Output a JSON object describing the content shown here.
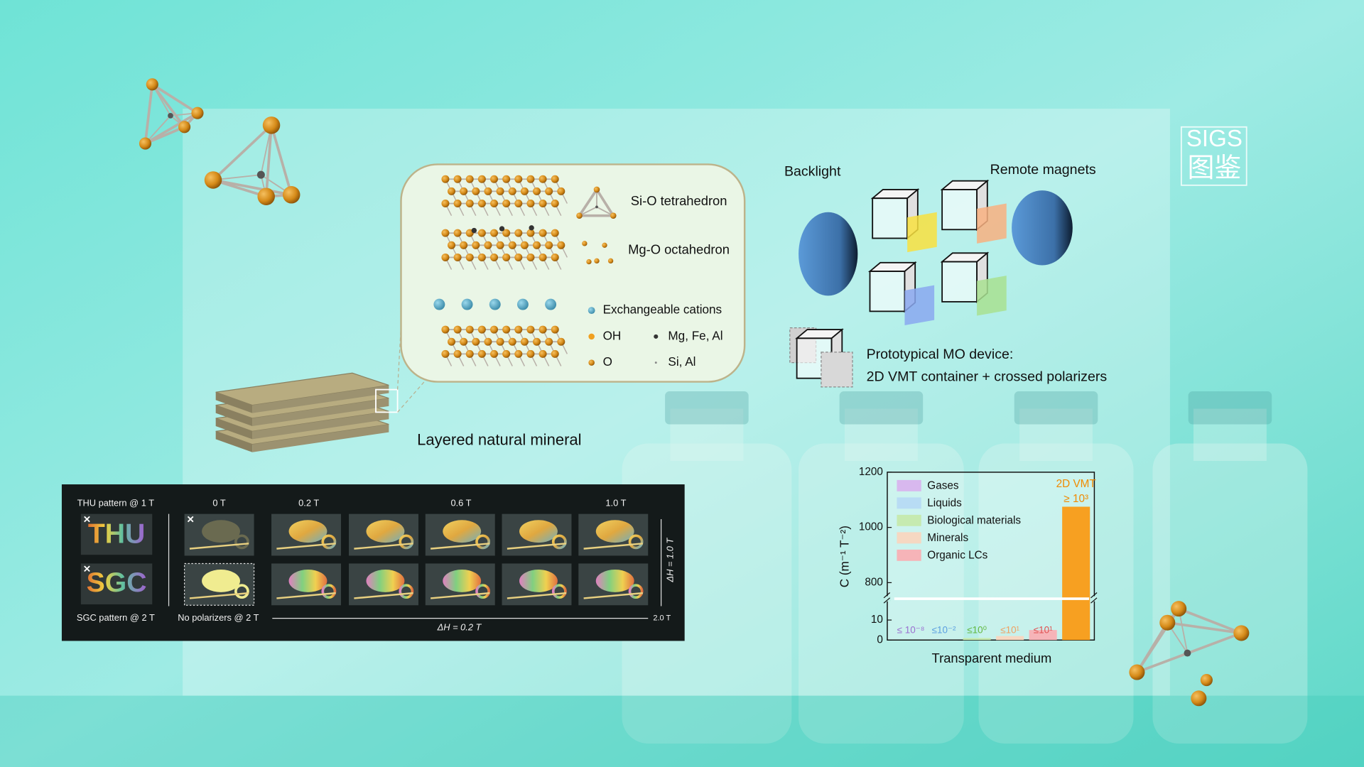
{
  "logo": {
    "line1": "SIGS",
    "line2": "图鉴"
  },
  "mineral": {
    "legend": {
      "tetrahedron": "Si-O tetrahedron",
      "octahedron": "Mg-O octahedron",
      "cations": "Exchangeable cations",
      "oh": "OH",
      "mg": "Mg, Fe, Al",
      "o": "O",
      "si": "Si, Al"
    },
    "caption": "Layered natural mineral"
  },
  "device": {
    "backlight": "Backlight",
    "magnets": "Remote magnets",
    "caption_line1": "Prototypical MO device:",
    "caption_line2": "2D VMT container + crossed polarizers"
  },
  "panel": {
    "thu_caption": "THU pattern @ 1 T",
    "sgc_caption": "SGC pattern @ 2 T",
    "thu_word": "THU",
    "sgc_word": "SGC",
    "field_labels": [
      "0 T",
      "0.2 T",
      "0.6 T",
      "1.0 T"
    ],
    "no_polarizers": "No polarizers @ 2 T",
    "step_label": "ΔH = 0.2 T",
    "end_label": "2.0 T",
    "column_step": "ΔH = 1.0 T"
  },
  "chart_data": {
    "type": "bar",
    "categories": [
      "Gases",
      "Liquids",
      "Biological materials",
      "Minerals",
      "Organic LCs",
      "2D VMT"
    ],
    "values": [
      0,
      0.01,
      1,
      2,
      5,
      1075
    ],
    "value_labels": [
      "≤ 10⁻⁸",
      "≤10⁻²",
      "≤10⁰",
      "≤10¹",
      "≤10¹",
      "≥ 10³"
    ],
    "colors": [
      "#d8b8ee",
      "#b8dcf4",
      "#c6eab0",
      "#f6d8c2",
      "#f6b4b8",
      "#f7a021"
    ],
    "label_colors": [
      "#9b6fd0",
      "#5a9fe0",
      "#62b840",
      "#f0a060",
      "#e05050",
      "#f08a00"
    ],
    "ylim": [
      0,
      1200
    ],
    "yticks": [
      0,
      10,
      800,
      1000,
      1200
    ],
    "y_break": [
      10,
      800
    ],
    "xlabel": "Transparent medium",
    "ylabel": "C (m⁻¹ T⁻²)"
  }
}
